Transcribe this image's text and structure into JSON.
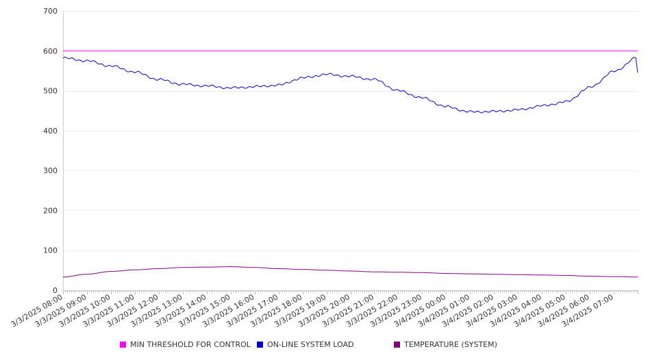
{
  "chart_data": {
    "type": "line",
    "title": "",
    "xlabel": "",
    "ylabel": "",
    "ylim": [
      0,
      700
    ],
    "yticks": [
      0,
      100,
      200,
      300,
      400,
      500,
      600,
      700
    ],
    "grid": true,
    "legend_position": "bottom",
    "x": [
      "3/3/2025 08:00",
      "3/3/2025 09:00",
      "3/3/2025 10:00",
      "3/3/2025 11:00",
      "3/3/2025 12:00",
      "3/3/2025 13:00",
      "3/3/2025 14:00",
      "3/3/2025 15:00",
      "3/3/2025 16:00",
      "3/3/2025 17:00",
      "3/3/2025 18:00",
      "3/3/2025 19:00",
      "3/3/2025 20:00",
      "3/3/2025 21:00",
      "3/3/2025 22:00",
      "3/3/2025 23:00",
      "3/4/2025 00:00",
      "3/4/2025 01:00",
      "3/4/2025 02:00",
      "3/4/2025 03:00",
      "3/4/2025 04:00",
      "3/4/2025 05:00",
      "3/4/2025 06:00",
      "3/4/2025 07:00"
    ],
    "series": [
      {
        "name": "MIN THRESHOLD FOR CONTROL",
        "color": "#ff00ff",
        "values": [
          600,
          600,
          600,
          600,
          600,
          600,
          600,
          600,
          600,
          600,
          600,
          600,
          600,
          600,
          600,
          600,
          600,
          600,
          600,
          600,
          600,
          600,
          600,
          600
        ]
      },
      {
        "name": "ON-LINE SYSTEM LOAD",
        "color": "#0000cc",
        "values": [
          582,
          575,
          562,
          547,
          528,
          516,
          512,
          507,
          510,
          514,
          532,
          541,
          536,
          528,
          500,
          482,
          460,
          447,
          448,
          452,
          462,
          472,
          508,
          548
        ]
      },
      {
        "name": "TEMPERATURE (SYSTEM)",
        "color": "#800080",
        "values": [
          33,
          40,
          47,
          51,
          54,
          57,
          58,
          59,
          57,
          54,
          52,
          50,
          48,
          46,
          45,
          44,
          42,
          41,
          40,
          39,
          38,
          37,
          35,
          34
        ]
      }
    ]
  }
}
